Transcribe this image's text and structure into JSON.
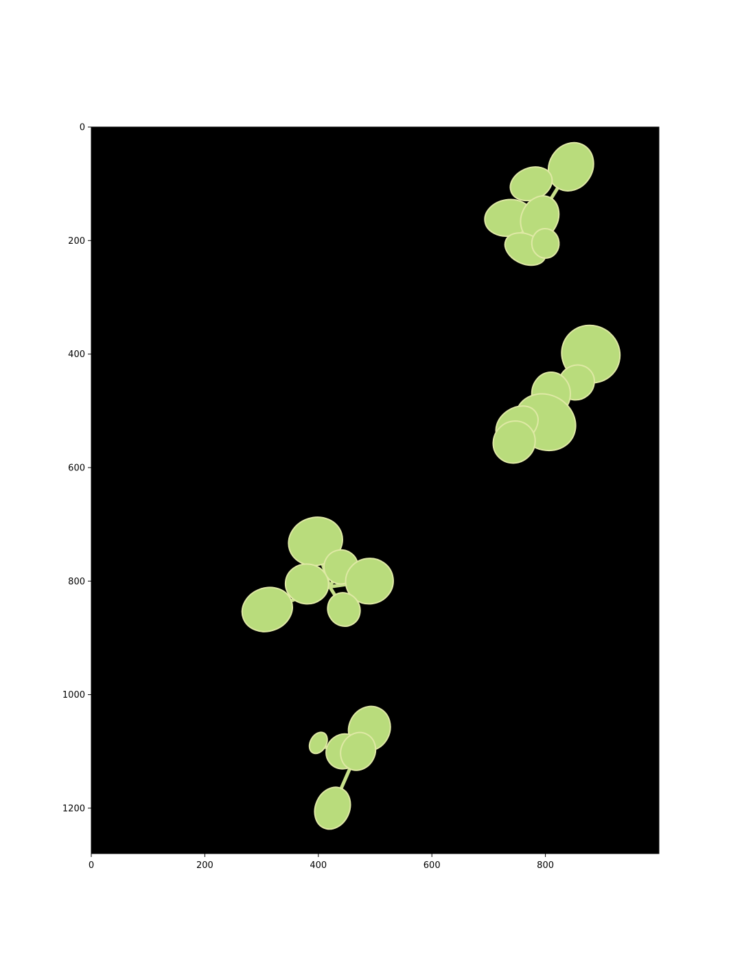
{
  "chart_data": {
    "type": "image",
    "title": "",
    "xlabel": "",
    "ylabel": "",
    "xlim": [
      0,
      1000
    ],
    "ylim": [
      1280,
      0
    ],
    "x_ticks": [
      0,
      200,
      400,
      600,
      800
    ],
    "y_ticks": [
      0,
      200,
      400,
      600,
      800,
      1000,
      1200
    ],
    "background": "#000000",
    "leaf_color": "#b9dc7c",
    "leaf_edge_color": "#dfe9a5",
    "seedlings": [
      {
        "name": "seedling-top-right",
        "center": [
          795,
          150
        ],
        "leaves": [
          [
            845,
            70,
            38,
            44
          ],
          [
            775,
            100,
            38,
            28
          ],
          [
            735,
            160,
            32,
            42
          ],
          [
            790,
            160,
            32,
            40
          ],
          [
            765,
            215,
            38,
            26
          ],
          [
            800,
            205,
            24,
            26
          ]
        ]
      },
      {
        "name": "seedling-middle-right",
        "center": [
          830,
          470
        ],
        "leaves": [
          [
            880,
            400,
            52,
            50
          ],
          [
            855,
            450,
            30,
            32
          ],
          [
            810,
            470,
            38,
            34
          ],
          [
            800,
            520,
            55,
            48
          ],
          [
            750,
            525,
            30,
            40
          ],
          [
            745,
            555,
            36,
            38
          ]
        ]
      },
      {
        "name": "seedling-center-left",
        "center": [
          420,
          810
        ],
        "leaves": [
          [
            395,
            730,
            48,
            42
          ],
          [
            310,
            850,
            38,
            45
          ],
          [
            440,
            775,
            30,
            30
          ],
          [
            490,
            800,
            40,
            42
          ],
          [
            445,
            850,
            28,
            30
          ],
          [
            380,
            805,
            35,
            38
          ]
        ]
      },
      {
        "name": "seedling-bottom",
        "center": [
          460,
          1120
        ],
        "leaves": [
          [
            490,
            1060,
            36,
            40
          ],
          [
            445,
            1100,
            32,
            30
          ],
          [
            470,
            1100,
            30,
            34
          ],
          [
            400,
            1085,
            20,
            14
          ],
          [
            425,
            1200,
            30,
            38
          ]
        ]
      }
    ]
  }
}
